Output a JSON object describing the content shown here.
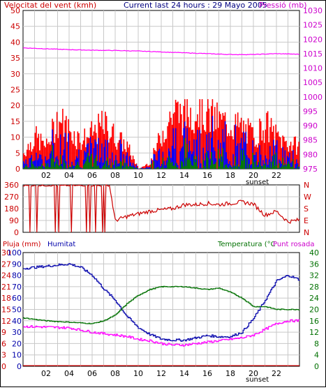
{
  "header": {
    "wind_title": "Velocitat del vent (kmh)",
    "current_title": "Current last 24 hours : 29 Mayo 2005",
    "pressure_title": "Pressió (mb)"
  },
  "footer": {
    "sunset_label": "sunset"
  },
  "colors": {
    "wind": "#ff0000",
    "gust_blue": "#0000ff",
    "gust_green": "#008000",
    "pressure": "#ff00ff",
    "direction": "#cc0000",
    "humidity": "#0000aa",
    "temperature": "#007000",
    "dewpoint": "#ff00ff",
    "grid": "#c8c8c8",
    "frame": "#000000"
  },
  "chart_data": [
    {
      "type": "bar",
      "title": "Velocitat del vent (kmh)",
      "right_title": "Pressió (mb)",
      "x_ticks": [
        "02",
        "04",
        "06",
        "08",
        "10",
        "12",
        "14",
        "16",
        "18",
        "20",
        "22"
      ],
      "x_annotation": "sunset",
      "left_axis": {
        "range": [
          0,
          50
        ],
        "ticks": [
          0,
          5,
          10,
          15,
          20,
          25,
          30,
          35,
          40,
          45,
          50
        ]
      },
      "right_axis": {
        "range": [
          975,
          1030
        ],
        "ticks": [
          975,
          980,
          985,
          990,
          995,
          1000,
          1005,
          1010,
          1015,
          1020,
          1025,
          1030
        ]
      },
      "grid": true,
      "series": [
        {
          "name": "Velocitat del vent (kmh)",
          "kind": "bars",
          "x": [
            0,
            1,
            2,
            3,
            4,
            5,
            6,
            7,
            8,
            9,
            10,
            11,
            12,
            13,
            14,
            15,
            16,
            17,
            18,
            19,
            20,
            21,
            22,
            23,
            24
          ],
          "y": [
            5,
            10,
            7,
            16,
            12,
            9,
            11,
            14,
            10,
            7,
            0,
            2,
            11,
            18,
            17,
            19,
            17,
            15,
            14,
            13,
            10,
            14,
            10,
            8,
            7
          ]
        },
        {
          "name": "Pressió (mb)",
          "kind": "line",
          "axis": "right",
          "x": [
            0,
            2,
            4,
            6,
            8,
            10,
            12,
            14,
            16,
            18,
            20,
            22,
            24
          ],
          "y": [
            1017,
            1016.7,
            1016.4,
            1016.2,
            1016.1,
            1015.9,
            1015.6,
            1015.3,
            1015,
            1014.7,
            1014.7,
            1015,
            1014.8
          ]
        }
      ]
    },
    {
      "type": "line",
      "title": "",
      "x_ticks": [
        "02",
        "04",
        "06",
        "08",
        "10",
        "12",
        "14",
        "16",
        "18",
        "20",
        "22"
      ],
      "left_axis": {
        "range": [
          0,
          360
        ],
        "ticks": [
          0,
          90,
          180,
          270,
          360
        ]
      },
      "right_labels": [
        "N",
        "W",
        "S",
        "E",
        "N"
      ],
      "grid": true,
      "series": [
        {
          "name": "",
          "x": [
            0,
            7.5,
            8,
            9,
            10,
            11,
            12,
            13,
            14,
            15,
            16,
            17,
            18,
            19,
            20,
            21,
            22,
            23,
            24
          ],
          "y": [
            360,
            360,
            90,
            120,
            140,
            160,
            170,
            180,
            210,
            210,
            220,
            210,
            220,
            230,
            215,
            130,
            160,
            80,
            95
          ]
        }
      ]
    },
    {
      "type": "line",
      "left_title": "Pluja (mm)",
      "left_title2": "Humitat",
      "right_title": "Temperatura (°C",
      "right_title2": "Punt rosada",
      "x_ticks": [
        "02",
        "04",
        "06",
        "08",
        "10",
        "12",
        "14",
        "16",
        "18",
        "20",
        "22"
      ],
      "x_annotation": "sunset",
      "rain_axis": {
        "range": [
          0,
          30
        ],
        "ticks": [
          0,
          3,
          6,
          9,
          12,
          15,
          18,
          21,
          24,
          27,
          30
        ]
      },
      "humidity_axis": {
        "range": [
          0,
          100
        ],
        "ticks": [
          0,
          10,
          20,
          30,
          40,
          50,
          60,
          70,
          80,
          90,
          100
        ]
      },
      "temperature_axis": {
        "range": [
          0,
          40
        ],
        "ticks": [
          0,
          4,
          8,
          12,
          16,
          20,
          24,
          28,
          32,
          36,
          40
        ]
      },
      "grid": true,
      "series": [
        {
          "name": "Humitat",
          "axis": "humidity",
          "x": [
            0,
            2,
            4,
            5,
            6,
            7,
            8,
            9,
            10,
            11,
            12,
            13,
            14,
            15,
            16,
            17,
            18,
            19,
            20,
            21,
            22,
            23,
            24
          ],
          "y": [
            86,
            88,
            90,
            87,
            80,
            68,
            58,
            44,
            34,
            28,
            24,
            23,
            23,
            25,
            27,
            26,
            26,
            30,
            42,
            58,
            75,
            80,
            76
          ]
        },
        {
          "name": "Temperatura (°C",
          "axis": "temperature",
          "x": [
            0,
            2,
            4,
            6,
            7,
            8,
            9,
            10,
            11,
            12,
            13,
            14,
            15,
            16,
            17,
            18,
            19,
            20,
            21,
            22,
            23,
            24
          ],
          "y": [
            17,
            16,
            15.5,
            15,
            16,
            18,
            22,
            25,
            27,
            28,
            28,
            28,
            27.5,
            27,
            27.5,
            26,
            24,
            21,
            21,
            20,
            20,
            20
          ]
        },
        {
          "name": "Punt rosada",
          "axis": "temperature",
          "x": [
            0,
            2,
            4,
            6,
            7,
            8,
            9,
            10,
            11,
            12,
            13,
            14,
            15,
            16,
            17,
            18,
            19,
            20,
            21,
            22,
            23,
            24
          ],
          "y": [
            14,
            13.8,
            13.5,
            12,
            11.5,
            11,
            10.5,
            9.5,
            9,
            8,
            7.5,
            7.5,
            8,
            8.5,
            9,
            9.5,
            10,
            11,
            13,
            15,
            16,
            16
          ]
        }
      ]
    }
  ]
}
